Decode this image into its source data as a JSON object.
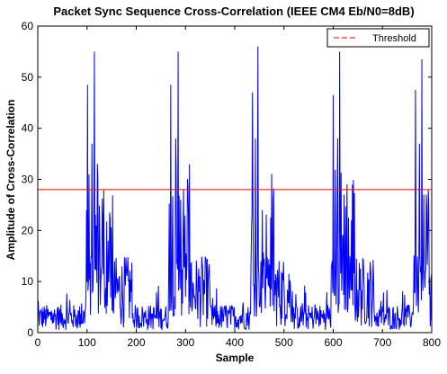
{
  "chart_data": {
    "type": "line",
    "title": "Packet Sync Sequence Cross-Correlation (IEEE CM4 Eb/N0=8dB)",
    "xlabel": "Sample",
    "ylabel": "Amplitude of Cross-Correlation",
    "xlim": [
      0,
      800
    ],
    "ylim": [
      0,
      60
    ],
    "xticks": [
      0,
      100,
      200,
      300,
      400,
      500,
      600,
      700,
      800
    ],
    "yticks": [
      0,
      10,
      20,
      30,
      40,
      50,
      60
    ],
    "grid": false,
    "legend_position": "top-right",
    "series": [
      {
        "name": "",
        "color": "#0000ff",
        "description_peaks": [
          {
            "x": 101,
            "y": 48.5
          },
          {
            "x": 110,
            "y": 37
          },
          {
            "x": 115,
            "y": 55
          },
          {
            "x": 121,
            "y": 33
          },
          {
            "x": 132,
            "y": 22
          },
          {
            "x": 146,
            "y": 23.5
          },
          {
            "x": 270,
            "y": 48.5
          },
          {
            "x": 280,
            "y": 38
          },
          {
            "x": 285,
            "y": 55
          },
          {
            "x": 290,
            "y": 26
          },
          {
            "x": 306,
            "y": 23
          },
          {
            "x": 436,
            "y": 47
          },
          {
            "x": 442,
            "y": 38
          },
          {
            "x": 447,
            "y": 56
          },
          {
            "x": 456,
            "y": 24
          },
          {
            "x": 473,
            "y": 22.5
          },
          {
            "x": 600,
            "y": 46.5
          },
          {
            "x": 609,
            "y": 38
          },
          {
            "x": 613,
            "y": 55
          },
          {
            "x": 622,
            "y": 27
          },
          {
            "x": 637,
            "y": 22
          },
          {
            "x": 767,
            "y": 47.5
          },
          {
            "x": 775,
            "y": 37
          },
          {
            "x": 780,
            "y": 53.5
          },
          {
            "x": 789,
            "y": 27
          }
        ],
        "noise_floor_typical": 3,
        "noise_floor_max": 9
      },
      {
        "name": "Threshold",
        "color": "#ff0000",
        "style": "dashed",
        "constant_y": 28
      }
    ]
  }
}
